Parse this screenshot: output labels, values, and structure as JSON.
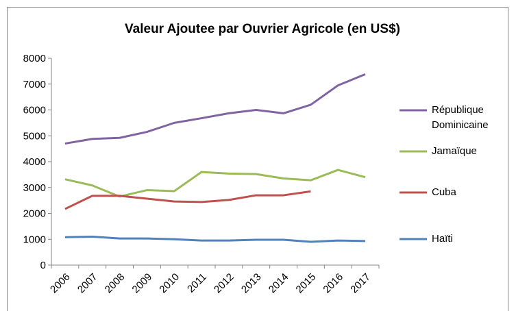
{
  "chart_data": {
    "type": "line",
    "title": "Valeur Ajoutee par Ouvrier Agricole (en US$)",
    "categories": [
      "2006",
      "2007",
      "2008",
      "2009",
      "2010",
      "2011",
      "2012",
      "2013",
      "2014",
      "2015",
      "2016",
      "2017"
    ],
    "ylim": [
      0,
      8000
    ],
    "yticks": [
      0,
      1000,
      2000,
      3000,
      4000,
      5000,
      6000,
      7000,
      8000
    ],
    "grid": false,
    "legend": "right",
    "series": [
      {
        "name": "République Dominicaine",
        "color": "#8064a2",
        "values": [
          4700,
          4880,
          4920,
          5150,
          5500,
          5680,
          5870,
          6000,
          5870,
          6200,
          6950,
          7380
        ]
      },
      {
        "name": "Jamaïque",
        "color": "#9bbb59",
        "values": [
          3320,
          3080,
          2650,
          2900,
          2860,
          3600,
          3540,
          3520,
          3350,
          3280,
          3680,
          3400
        ]
      },
      {
        "name": "Cuba",
        "color": "#c0504d",
        "values": [
          2170,
          2680,
          2680,
          2570,
          2460,
          2440,
          2520,
          2700,
          2700,
          2850,
          null,
          null
        ]
      },
      {
        "name": "Haïti",
        "color": "#4f81bd",
        "values": [
          1080,
          1100,
          1030,
          1030,
          1000,
          950,
          950,
          980,
          980,
          900,
          950,
          930
        ]
      }
    ]
  }
}
